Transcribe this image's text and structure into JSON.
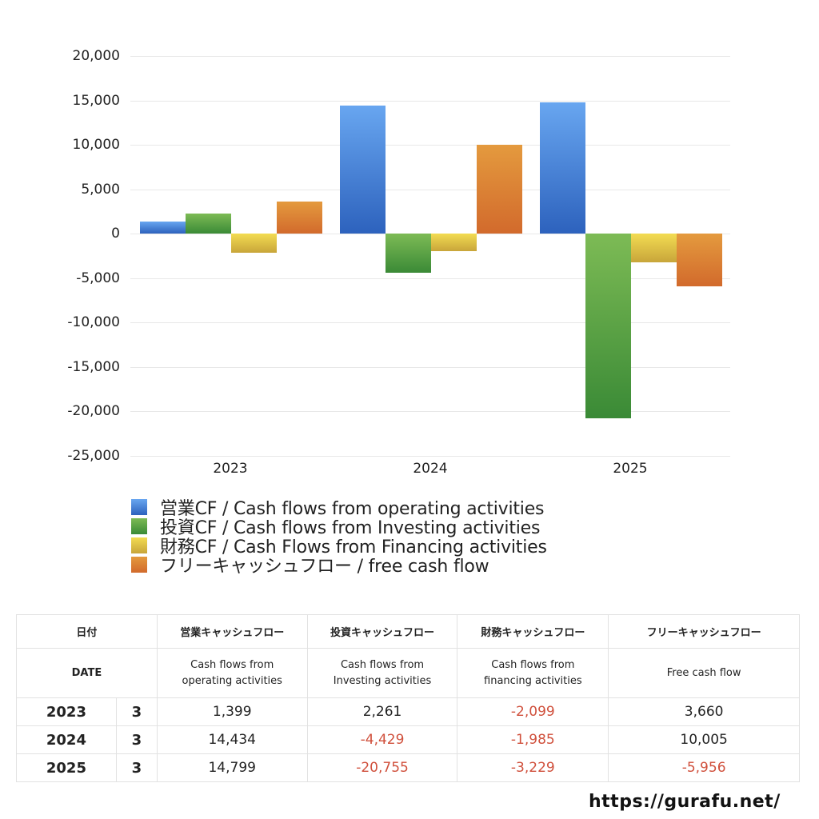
{
  "chart_data": {
    "type": "bar",
    "title": "",
    "xlabel": "",
    "ylabel": "",
    "categories": [
      "2023",
      "2024",
      "2025"
    ],
    "ylim": [
      -25000,
      20000
    ],
    "yticks": [
      "20,000",
      "15,000",
      "10,000",
      "5,000",
      "0",
      "-5,000",
      "-10,000",
      "-15,000",
      "-20,000",
      "-25,000"
    ],
    "ytick_values": [
      20000,
      15000,
      10000,
      5000,
      0,
      -5000,
      -10000,
      -15000,
      -20000,
      -25000
    ],
    "grid": true,
    "legend_position": "bottom",
    "series": [
      {
        "name": "営業CF / Cash flows from operating activities",
        "values": [
          1399,
          14434,
          14799
        ],
        "color_top": "#68a6f0",
        "color_bottom": "#2d62bd"
      },
      {
        "name": "投資CF / Cash flows from Investing activities",
        "values": [
          2261,
          -4429,
          -20755
        ],
        "color_top": "#7dbb55",
        "color_bottom": "#3a8a36"
      },
      {
        "name": "財務CF / Cash Flows from Financing activities",
        "values": [
          -2099,
          -1985,
          -3229
        ],
        "color_top": "#f3dc52",
        "color_bottom": "#c8a53a"
      },
      {
        "name": "フリーキャッシュフロー / free cash flow",
        "values": [
          3660,
          10005,
          -5956
        ],
        "color_top": "#e49a3e",
        "color_bottom": "#d26a2c"
      }
    ]
  },
  "legend": {
    "items": [
      {
        "label": "営業CF / Cash flows from operating activities",
        "color": "#3f7fd8"
      },
      {
        "label": "投資CF / Cash flows from Investing activities",
        "color": "#4e9a3e"
      },
      {
        "label": "財務CF / Cash Flows from Financing activities",
        "color": "#e3c44a"
      },
      {
        "label": "フリーキャッシュフロー / free cash flow",
        "color": "#dd7d33"
      }
    ]
  },
  "table": {
    "header_jp": {
      "date": "日付",
      "operating": "営業キャッシュフロー",
      "investing": "投資キャッシュフロー",
      "financing": "財務キャッシュフロー",
      "free": "フリーキャッシュフロー"
    },
    "header_en": {
      "date": "DATE",
      "operating_1": "Cash flows from",
      "operating_2": "operating activities",
      "investing_1": "Cash flows from",
      "investing_2": "Investing activities",
      "financing_1": "Cash flows from",
      "financing_2": "financing activities",
      "free": "Free cash flow"
    },
    "rows": [
      {
        "year": "2023",
        "month": "3",
        "operating": "1,399",
        "investing": "2,261",
        "financing": "-2,099",
        "free": "3,660"
      },
      {
        "year": "2024",
        "month": "3",
        "operating": "14,434",
        "investing": "-4,429",
        "financing": "-1,985",
        "free": "10,005"
      },
      {
        "year": "2025",
        "month": "3",
        "operating": "14,799",
        "investing": "-20,755",
        "financing": "-3,229",
        "free": "-5,956"
      }
    ],
    "negative_color": "#d0503c"
  },
  "watermark": "https://gurafu.net/"
}
